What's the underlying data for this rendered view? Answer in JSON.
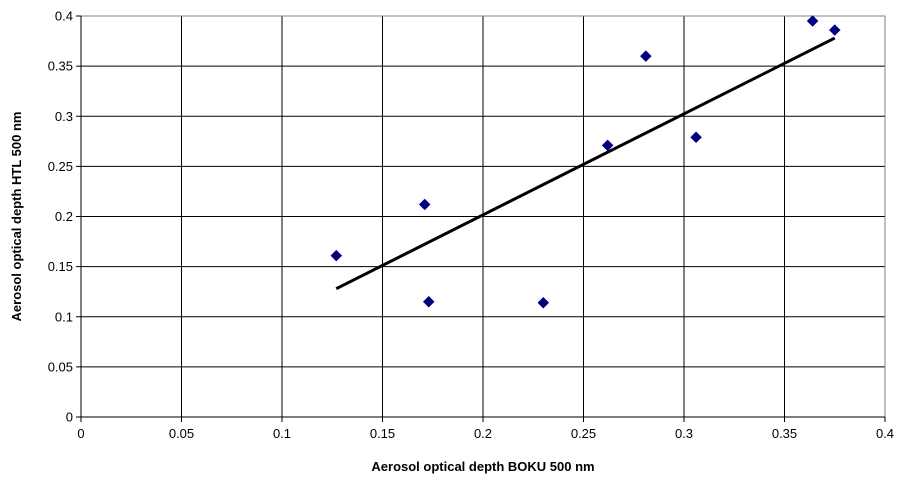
{
  "chart_data": {
    "type": "scatter",
    "title": "",
    "xlabel": "Aerosol optical depth BOKU 500 nm",
    "ylabel": "Aerosol optical depth HTL 500 nm",
    "xlim": [
      0,
      0.4
    ],
    "ylim": [
      0,
      0.4
    ],
    "x_ticks": [
      "0",
      "0.05",
      "0.1",
      "0.15",
      "0.2",
      "0.25",
      "0.3",
      "0.35",
      "0.4"
    ],
    "y_ticks": [
      "0",
      "0.05",
      "0.1",
      "0.15",
      "0.2",
      "0.25",
      "0.3",
      "0.35",
      "0.4"
    ],
    "grid": true,
    "legend": "none",
    "marker_color": "#000080",
    "trendline_color": "#000000",
    "points": [
      {
        "x": 0.127,
        "y": 0.161
      },
      {
        "x": 0.171,
        "y": 0.212
      },
      {
        "x": 0.173,
        "y": 0.115
      },
      {
        "x": 0.23,
        "y": 0.114
      },
      {
        "x": 0.262,
        "y": 0.271
      },
      {
        "x": 0.281,
        "y": 0.36
      },
      {
        "x": 0.306,
        "y": 0.279
      },
      {
        "x": 0.364,
        "y": 0.395
      },
      {
        "x": 0.375,
        "y": 0.386
      }
    ],
    "trendline": {
      "x": [
        0.127,
        0.375
      ],
      "y": [
        0.128,
        0.378
      ]
    }
  }
}
